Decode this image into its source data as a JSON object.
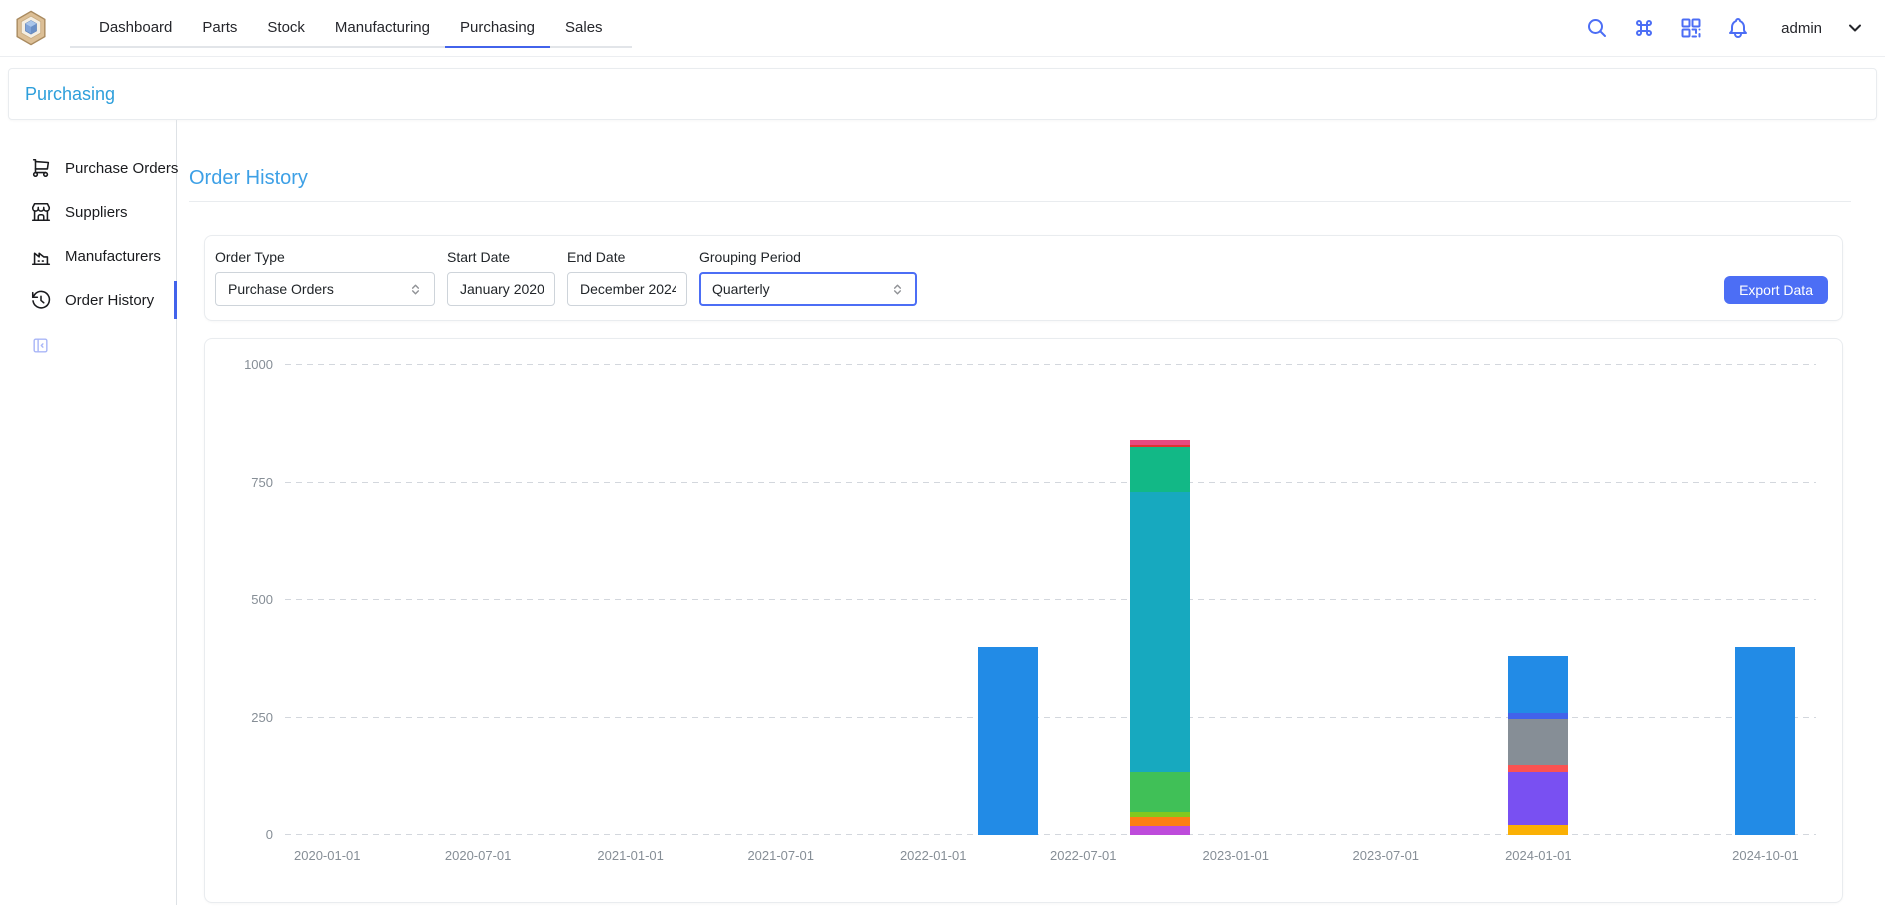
{
  "header": {
    "tabs": [
      {
        "label": "Dashboard",
        "active": false
      },
      {
        "label": "Parts",
        "active": false
      },
      {
        "label": "Stock",
        "active": false
      },
      {
        "label": "Manufacturing",
        "active": false
      },
      {
        "label": "Purchasing",
        "active": true
      },
      {
        "label": "Sales",
        "active": false
      }
    ],
    "action_icons": [
      "search-icon",
      "command-icon",
      "qrcode-icon",
      "bell-icon"
    ],
    "username": "admin"
  },
  "breadcrumb": {
    "title": "Purchasing"
  },
  "sidebar": {
    "items": [
      {
        "label": "Purchase Orders",
        "icon": "cart-icon",
        "active": false
      },
      {
        "label": "Suppliers",
        "icon": "store-icon",
        "active": false
      },
      {
        "label": "Manufacturers",
        "icon": "factory-icon",
        "active": false
      },
      {
        "label": "Order History",
        "icon": "history-icon",
        "active": true
      }
    ]
  },
  "main": {
    "title": "Order History",
    "filters": {
      "order_type": {
        "label": "Order Type",
        "value": "Purchase Orders"
      },
      "start_date": {
        "label": "Start Date",
        "value": "January 2020"
      },
      "end_date": {
        "label": "End Date",
        "value": "December 2024"
      },
      "grouping_period": {
        "label": "Grouping Period",
        "value": "Quarterly"
      },
      "export_label": "Export Data"
    }
  },
  "colors": {
    "accent": "#4c6ef5",
    "tab_active_underline": "#4263eb",
    "heading_link": "#3da0e6",
    "axis_text": "#868e96"
  },
  "chart_data": {
    "type": "bar",
    "stacked": true,
    "title": "",
    "xlabel": "",
    "ylabel": "",
    "legend": "none",
    "grid": "dashed-horizontal",
    "ylim": [
      0,
      1000
    ],
    "yticks": [
      0,
      250,
      500,
      750,
      1000
    ],
    "x_domain": [
      "2019-11-11",
      "2024-12-01"
    ],
    "xticks": [
      "2020-01-01",
      "2020-07-01",
      "2021-01-01",
      "2021-07-01",
      "2022-01-01",
      "2022-07-01",
      "2023-01-01",
      "2023-07-01",
      "2024-01-01",
      "2024-10-01"
    ],
    "bars": [
      {
        "date": "2022-04-01",
        "total": 400,
        "segments": [
          {
            "color": "#228be6",
            "value": 400
          }
        ]
      },
      {
        "date": "2022-10-01",
        "total": 841,
        "segments": [
          {
            "color": "#be4bdb",
            "value": 20
          },
          {
            "color": "#fd7e14",
            "value": 18
          },
          {
            "color": "#82c91e",
            "value": 12
          },
          {
            "color": "#40c057",
            "value": 85
          },
          {
            "color": "#17a9bf",
            "value": 595
          },
          {
            "color": "#12b886",
            "value": 96
          },
          {
            "color": "#e03131",
            "value": 5
          },
          {
            "color": "#e64980",
            "value": 10
          }
        ]
      },
      {
        "date": "2024-01-01",
        "total": 380,
        "segments": [
          {
            "color": "#fab005",
            "value": 21
          },
          {
            "color": "#7950f2",
            "value": 113
          },
          {
            "color": "#fa5252",
            "value": 14
          },
          {
            "color": "#868e96",
            "value": 98
          },
          {
            "color": "#4263eb",
            "value": 13
          },
          {
            "color": "#228be6",
            "value": 121
          }
        ]
      },
      {
        "date": "2024-10-01",
        "total": 400,
        "segments": [
          {
            "color": "#228be6",
            "value": 400
          }
        ]
      }
    ]
  }
}
